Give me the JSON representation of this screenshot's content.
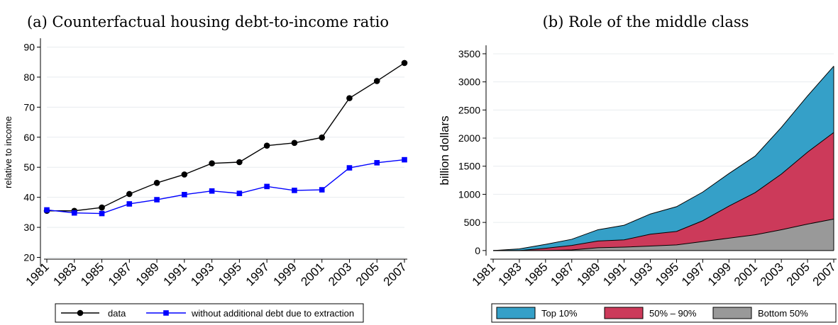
{
  "chart_data": [
    {
      "type": "line",
      "title": "(a) Counterfactual housing debt-to-income ratio",
      "ylabel": "relative to income",
      "xlabel": "",
      "ylim": [
        18,
        92
      ],
      "yticks": [
        20,
        30,
        40,
        50,
        60,
        70,
        80,
        90
      ],
      "x": [
        1981,
        1983,
        1985,
        1987,
        1989,
        1991,
        1993,
        1995,
        1997,
        1999,
        2001,
        2003,
        2005,
        2007
      ],
      "grid": true,
      "legend_position": "bottom",
      "series": [
        {
          "name": "data",
          "color": "#000000",
          "marker": "circle",
          "values": [
            35.5,
            35.5,
            36.6,
            41.1,
            44.8,
            47.6,
            51.3,
            51.7,
            57.2,
            58.1,
            59.9,
            73.0,
            78.7,
            84.7
          ]
        },
        {
          "name": "without additional debt due to extraction",
          "color": "#0000ff",
          "marker": "square",
          "values": [
            35.8,
            34.8,
            34.6,
            37.8,
            39.2,
            40.9,
            42.1,
            41.3,
            43.6,
            42.3,
            42.5,
            49.8,
            51.5,
            52.5
          ]
        }
      ]
    },
    {
      "type": "area",
      "stacked": true,
      "title": "(b) Role of the middle class",
      "ylabel": "billion dollars",
      "xlabel": "",
      "ylim": [
        -40,
        3600
      ],
      "yticks": [
        0,
        500,
        1000,
        1500,
        2000,
        2500,
        3000,
        3500
      ],
      "x": [
        1981,
        1983,
        1985,
        1987,
        1989,
        1991,
        1993,
        1995,
        1997,
        1999,
        2001,
        2003,
        2005,
        2007
      ],
      "grid": true,
      "legend_position": "bottom",
      "series": [
        {
          "name": "Bottom 50%",
          "color": "#999999",
          "values": [
            0,
            0,
            0,
            10,
            50,
            60,
            80,
            100,
            160,
            220,
            280,
            370,
            470,
            560
          ]
        },
        {
          "name": "50% – 90%",
          "color": "#cc3a5a",
          "values": [
            0,
            0,
            40,
            80,
            120,
            130,
            210,
            240,
            370,
            570,
            750,
            990,
            1280,
            1540
          ]
        },
        {
          "name": "Top 10%",
          "color": "#35a0c8",
          "values": [
            0,
            30,
            70,
            110,
            200,
            260,
            360,
            440,
            510,
            580,
            650,
            830,
            1000,
            1180
          ]
        }
      ]
    }
  ]
}
